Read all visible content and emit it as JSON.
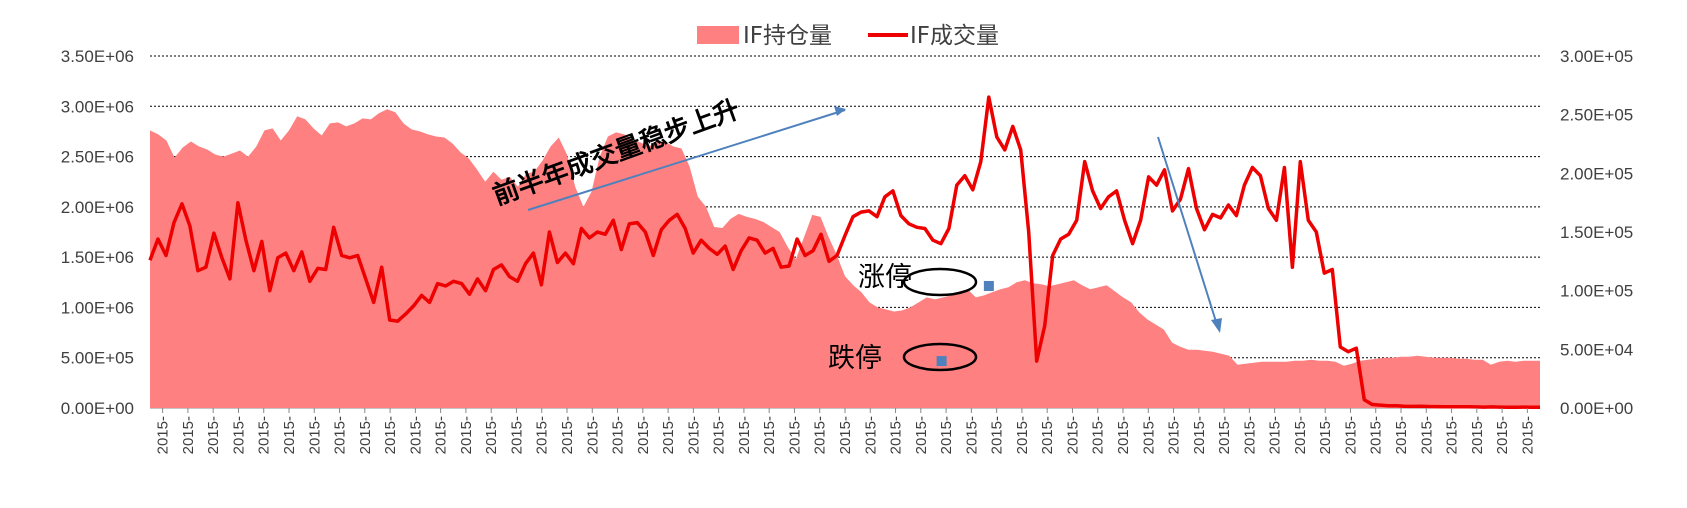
{
  "chart_data": {
    "type": "area",
    "title": "",
    "xlabel": "",
    "ylabel_left": "",
    "ylabel_right": "",
    "ylim_left": [
      0,
      3500000
    ],
    "ylim_right": [
      0,
      300000
    ],
    "yticks_left": [
      "0.00E+00",
      "5.00E+05",
      "1.00E+06",
      "1.50E+06",
      "2.00E+06",
      "2.50E+06",
      "3.00E+06",
      "3.50E+06"
    ],
    "yticks_right": [
      "0.00E+00",
      "5.00E+04",
      "1.00E+05",
      "1.50E+05",
      "2.00E+05",
      "2.50E+05",
      "3.00E+05"
    ],
    "xtick_label": "2015-",
    "xtick_count": 55,
    "grid": true,
    "legend_position": "top-center",
    "series": [
      {
        "name": "IF持仓量",
        "type": "area",
        "axis": "left",
        "color": "#ff8080",
        "values": [
          2760000,
          2720000,
          2660000,
          2490000,
          2590000,
          2650000,
          2600000,
          2570000,
          2520000,
          2500000,
          2530000,
          2560000,
          2500000,
          2600000,
          2760000,
          2780000,
          2660000,
          2760000,
          2900000,
          2870000,
          2780000,
          2710000,
          2830000,
          2840000,
          2800000,
          2830000,
          2880000,
          2870000,
          2930000,
          2970000,
          2940000,
          2830000,
          2770000,
          2750000,
          2720000,
          2700000,
          2690000,
          2630000,
          2540000,
          2480000,
          2370000,
          2250000,
          2350000,
          2270000,
          2300000,
          2200000,
          2330000,
          2350000,
          2460000,
          2600000,
          2690000,
          2520000,
          2200000,
          2000000,
          2150000,
          2500000,
          2700000,
          2740000,
          2720000,
          2660000,
          2640000,
          2600000,
          2650000,
          2650000,
          2600000,
          2580000,
          2400000,
          2100000,
          2000000,
          1800000,
          1790000,
          1880000,
          1930000,
          1900000,
          1880000,
          1850000,
          1800000,
          1750000,
          1600000,
          1480000,
          1700000,
          1920000,
          1900000,
          1700000,
          1520000,
          1310000,
          1220000,
          1150000,
          1050000,
          1000000,
          980000,
          960000,
          970000,
          1000000,
          1050000,
          1100000,
          1080000,
          1100000,
          1120000,
          1160000,
          1180000,
          1100000,
          1120000,
          1150000,
          1180000,
          1200000,
          1250000,
          1270000,
          1240000,
          1230000,
          1210000,
          1230000,
          1250000,
          1270000,
          1220000,
          1180000,
          1200000,
          1220000,
          1160000,
          1100000,
          1050000,
          950000,
          880000,
          830000,
          780000,
          650000,
          610000,
          580000,
          580000,
          570000,
          560000,
          540000,
          520000,
          430000,
          440000,
          450000,
          460000,
          460000,
          460000,
          460000,
          470000,
          470000,
          480000,
          470000,
          470000,
          460000,
          420000,
          440000,
          470000,
          480000,
          490000,
          500000,
          500000,
          510000,
          510000,
          520000,
          510000,
          500000,
          500000,
          500000,
          490000,
          490000,
          480000,
          480000,
          430000,
          460000,
          470000,
          460000,
          470000,
          470000,
          470000
        ]
      },
      {
        "name": "IF成交量",
        "type": "line",
        "axis": "right",
        "color": "#ee0000",
        "values": [
          126000,
          144000,
          130000,
          158000,
          174000,
          155000,
          117000,
          120000,
          149000,
          128000,
          110000,
          175000,
          143000,
          117000,
          142000,
          100000,
          128000,
          132000,
          117000,
          133000,
          108000,
          119000,
          118000,
          154000,
          130000,
          128000,
          130000,
          110000,
          90000,
          120000,
          75000,
          74000,
          80000,
          87000,
          96000,
          90000,
          106000,
          104000,
          108000,
          106000,
          97000,
          110000,
          100000,
          118000,
          122000,
          112000,
          108000,
          123000,
          132000,
          105000,
          150000,
          124000,
          132000,
          123000,
          153000,
          145000,
          150000,
          148000,
          160000,
          135000,
          157000,
          158000,
          150000,
          130000,
          152000,
          160000,
          165000,
          153000,
          132000,
          143000,
          136000,
          131000,
          138000,
          118000,
          134000,
          145000,
          143000,
          132000,
          136000,
          120000,
          121000,
          144000,
          130000,
          134000,
          148000,
          125000,
          130000,
          147000,
          163000,
          167000,
          168000,
          163000,
          180000,
          185000,
          164000,
          157000,
          154000,
          153000,
          143000,
          140000,
          153000,
          190000,
          198000,
          186000,
          210000,
          265000,
          231000,
          220000,
          240000,
          220000,
          150000,
          40000,
          70000,
          130000,
          144000,
          148000,
          160000,
          210000,
          185000,
          170000,
          180000,
          185000,
          160000,
          140000,
          160000,
          197000,
          190000,
          203000,
          168000,
          178000,
          204000,
          170000,
          152000,
          165000,
          162000,
          173000,
          164000,
          190000,
          205000,
          198000,
          170000,
          160000,
          205000,
          120000,
          210000,
          160000,
          150000,
          115000,
          118000,
          52000,
          48000,
          51000,
          7000,
          3000,
          2500,
          2000,
          2000,
          1500,
          1400,
          1500,
          1300,
          1200,
          1100,
          1000,
          1000,
          1100,
          900,
          800,
          900,
          800,
          700,
          700,
          800,
          700,
          600
        ]
      }
    ],
    "markers": [
      {
        "label": "涨停",
        "series": "IF成交量",
        "value": 104000,
        "index_fraction": 0.6035,
        "color": "#4f81bd"
      },
      {
        "label": "跌停",
        "series": "IF成交量",
        "value": 40000,
        "index_fraction": 0.5695,
        "color": "#4f81bd"
      }
    ],
    "annotations": {
      "trend_text": "前半年成交量稳步上升",
      "limit_up": "涨停",
      "limit_down": "跌停"
    }
  }
}
